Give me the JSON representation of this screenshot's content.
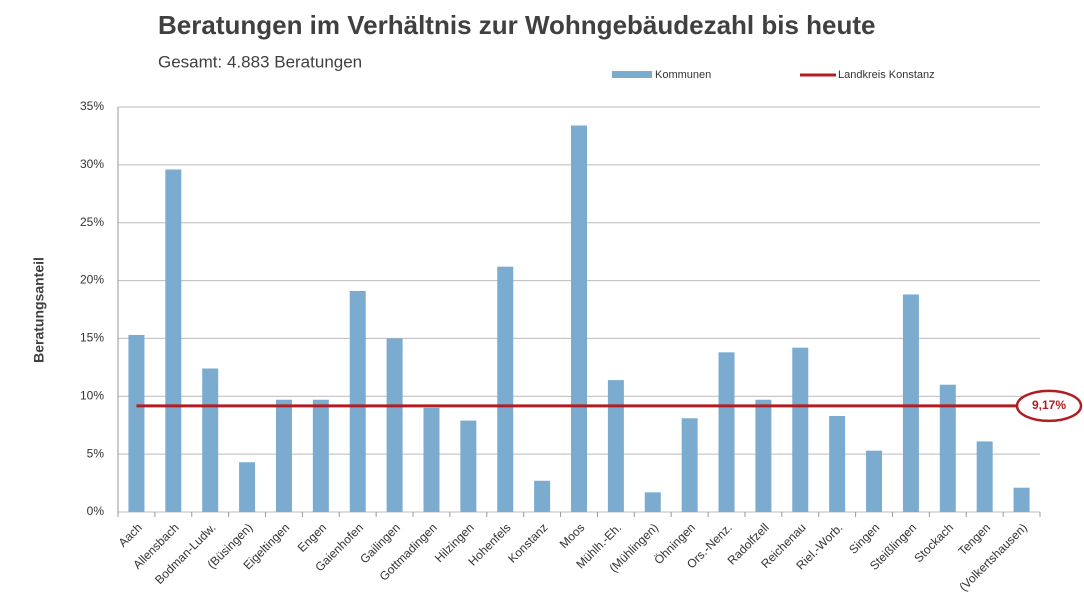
{
  "chart_data": {
    "type": "bar",
    "title": "Beratungen im Verhältnis zur Wohngebäudezahl bis heute",
    "subtitle": "Gesamt: 4.883 Beratungen",
    "y_label": "Beratungsanteil",
    "categories": [
      "Aach",
      "Allensbach",
      "Bodman-Ludw.",
      "(Büsingen)",
      "Eigeltingen",
      "Engen",
      "Gaienhofen",
      "Gailingen",
      "Gottmadingen",
      "Hilzingen",
      "Hohenfels",
      "Konstanz",
      "Moos",
      "Mühlh.-Eh.",
      "(Mühlingen)",
      "Öhningen",
      "Ors.-Nenz.",
      "Radolfzell",
      "Reichenau",
      "Riel.-Worb.",
      "Singen",
      "Steißlingen",
      "Stockach",
      "Tengen",
      "(Volkertshausen)"
    ],
    "series": [
      {
        "name": "Kommunen",
        "color": "#7bacd0",
        "values": [
          15.3,
          29.6,
          12.4,
          4.3,
          9.7,
          9.7,
          19.1,
          15.0,
          9.0,
          7.9,
          21.2,
          2.7,
          33.4,
          11.4,
          1.7,
          8.1,
          13.8,
          9.7,
          14.2,
          8.3,
          5.3,
          18.8,
          11.0,
          6.1,
          2.1
        ]
      }
    ],
    "reference": {
      "name": "Landkreis Konstanz",
      "color": "#b01e23",
      "values": [
        9.17
      ],
      "value_labels": [
        "9,17%"
      ]
    },
    "ylim": [
      0,
      35
    ],
    "yticks": [
      {
        "value": 0,
        "label": "0%"
      },
      {
        "value": 5,
        "label": "5%"
      },
      {
        "value": 10,
        "label": "10%"
      },
      {
        "value": 15,
        "label": "15%"
      },
      {
        "value": 20,
        "label": "20%"
      },
      {
        "value": 25,
        "label": "25%"
      },
      {
        "value": 30,
        "label": "30%"
      },
      {
        "value": 35,
        "label": "35%"
      }
    ],
    "grid": true
  }
}
